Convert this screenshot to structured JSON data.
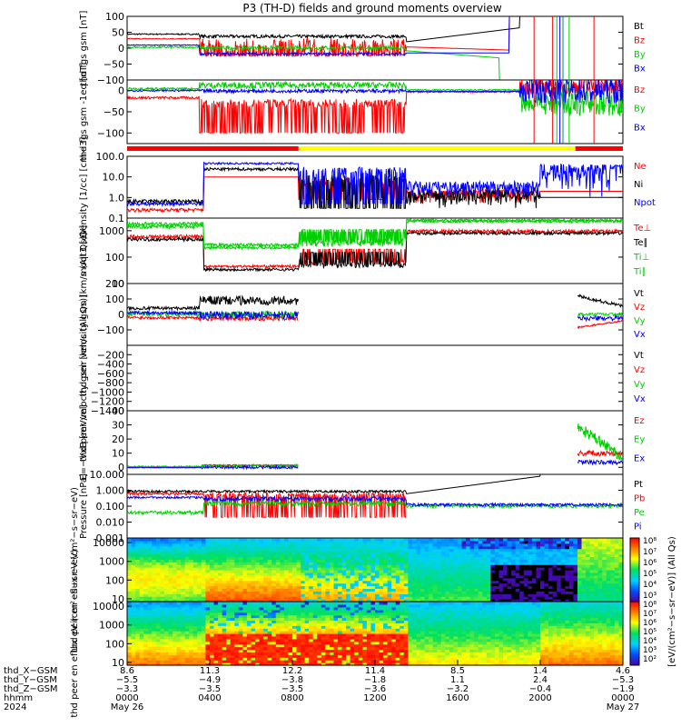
{
  "title": "P3 (TH-D) fields and ground moments overview",
  "colors": {
    "black": "#000000",
    "red": "#ff0000",
    "green": "#00d000",
    "blue": "#0000ff",
    "yellow": "#ffff00",
    "teal": "#008888",
    "hotpink": "#ff0080"
  },
  "chart_data": [
    {
      "type": "line",
      "ylabel": "thd fgs gsm [nT]",
      "ylim": [
        -100,
        100
      ],
      "yticks": [
        "100",
        "50",
        "0",
        "−50",
        "−100"
      ],
      "series": [
        {
          "name": "Bt",
          "color": "#000000"
        },
        {
          "name": "Bz",
          "color": "#ff0000"
        },
        {
          "name": "By",
          "color": "#00d000"
        },
        {
          "name": "Bx",
          "color": "#0000ff"
        }
      ]
    },
    {
      "type": "line",
      "ylabel": "thd fgs gsm -1eq [nT]",
      "ylim": [
        -125,
        25
      ],
      "yticks": [
        "0",
        "−50",
        "−100"
      ],
      "series": [
        {
          "name": "Bz",
          "color": "#ff0000"
        },
        {
          "name": "By",
          "color": "#00d000"
        },
        {
          "name": "Bx",
          "color": "#0000ff"
        }
      ]
    },
    {
      "type": "line",
      "ylabel": "Density [1/cc] [cm−3]",
      "scale": "log",
      "ylim": [
        0.1,
        100
      ],
      "yticks": [
        "100.0",
        "10.0",
        "1.0",
        "0.1"
      ],
      "series": [
        {
          "name": "Ne",
          "color": "#ff0000"
        },
        {
          "name": "Ni",
          "color": "#000000"
        },
        {
          "name": "Npot",
          "color": "#0000ff"
        }
      ]
    },
    {
      "type": "line",
      "ylabel": "moqt3 [eV]",
      "scale": "log",
      "ylim": [
        10,
        3000
      ],
      "yticks": [
        "1000",
        "100",
        "10"
      ],
      "series": [
        {
          "name": "Te⊥",
          "color": "#ff0000"
        },
        {
          "name": "Te∥",
          "color": "#000000"
        },
        {
          "name": "Ti⊥",
          "color": "#00d000"
        },
        {
          "name": "Ti∥",
          "color": "#00d000"
        }
      ]
    },
    {
      "type": "line",
      "ylabel": "thd peir velocity gsm [km/s (All Qs)]",
      "ylim": [
        -200,
        200
      ],
      "yticks": [
        "200",
        "100",
        "0",
        "−100"
      ],
      "series": [
        {
          "name": "Vt",
          "color": "#000000"
        },
        {
          "name": "Vz",
          "color": "#ff0000"
        },
        {
          "name": "Vy",
          "color": "#00d000"
        },
        {
          "name": "Vx",
          "color": "#0000ff"
        }
      ]
    },
    {
      "type": "line",
      "ylabel": "thd peer velocity gsm [km/s (All Qs)]",
      "ylim": [
        -1400,
        0
      ],
      "yticks": [
        "−200",
        "−400",
        "−600",
        "−800",
        "−1000",
        "−1200",
        "−1400"
      ],
      "series": [
        {
          "name": "Vt",
          "color": "#000000"
        },
        {
          "name": "Vz",
          "color": "#ff0000"
        },
        {
          "name": "Vy",
          "color": "#00d000"
        },
        {
          "name": "Vx",
          "color": "#0000ff"
        }
      ]
    },
    {
      "type": "line",
      "ylabel": "E=−VxB [mV/m]",
      "ylim": [
        -5,
        40
      ],
      "yticks": [
        "40",
        "30",
        "20",
        "10",
        "0"
      ],
      "series": [
        {
          "name": "Ez",
          "color": "#ff0000"
        },
        {
          "name": "Ey",
          "color": "#00d000"
        },
        {
          "name": "Ex",
          "color": "#0000ff"
        }
      ]
    },
    {
      "type": "line",
      "ylabel": "Pressure [nPa]",
      "scale": "log",
      "ylim": [
        0.001,
        10
      ],
      "yticks": [
        "10.000",
        "1.000",
        "0.100",
        "0.010",
        "0.001"
      ],
      "series": [
        {
          "name": "Pt",
          "color": "#000000"
        },
        {
          "name": "Pb",
          "color": "#ff0000"
        },
        {
          "name": "Pe",
          "color": "#00d000"
        },
        {
          "name": "Pi",
          "color": "#0000ff"
        }
      ]
    },
    {
      "type": "heatmap",
      "ylabel": "thd peir en eflux eV (cm²−s−sr−eV)",
      "yticks": [
        "10000",
        "1000",
        "100",
        "10"
      ],
      "colorbar_ticks": [
        "10⁸",
        "10⁷",
        "10⁶",
        "10⁵",
        "10⁴",
        "10³"
      ]
    },
    {
      "type": "heatmap",
      "ylabel": "thd peer en eflux eV (cm²−s−sr−eV)",
      "yticks": [
        "10000",
        "1000",
        "100",
        "10"
      ],
      "colorbar_ticks": [
        "10⁸",
        "10⁷",
        "10⁶",
        "10⁵",
        "10⁴",
        "10³",
        "10²"
      ]
    }
  ],
  "colorbar_label": "[eV/(cm²−s−sr−eV)] (All Qs)",
  "x_axis": {
    "row_labels": [
      "thd_X−GSM",
      "thd_Y−GSM",
      "thd_Z−GSM",
      "hhmm",
      "2024"
    ],
    "ticks": [
      {
        "x": "8.6",
        "y": "−5.5",
        "z": "−3.3",
        "hhmm": "0000",
        "date": "May 26"
      },
      {
        "x": "11.3",
        "y": "−4.9",
        "z": "−3.5",
        "hhmm": "0400",
        "date": ""
      },
      {
        "x": "12.2",
        "y": "−3.8",
        "z": "−3.5",
        "hhmm": "0800",
        "date": ""
      },
      {
        "x": "11.4",
        "y": "−1.8",
        "z": "−3.6",
        "hhmm": "1200",
        "date": ""
      },
      {
        "x": "8.5",
        "y": "1.1",
        "z": "−3.2",
        "hhmm": "1600",
        "date": ""
      },
      {
        "x": "1.4",
        "y": "2.4",
        "z": "−0.4",
        "hhmm": "2000",
        "date": ""
      },
      {
        "x": "4.6",
        "y": "−5.3",
        "z": "−1.9",
        "hhmm": "0000",
        "date": "May 27"
      }
    ]
  },
  "mode_bar": [
    {
      "color": "#ff0000",
      "from_hour": 0,
      "to_hour": 8.3
    },
    {
      "color": "#ffff00",
      "from_hour": 8.3,
      "to_hour": 21.7
    },
    {
      "color": "#ff0000",
      "from_hour": 21.7,
      "to_hour": 24
    }
  ]
}
